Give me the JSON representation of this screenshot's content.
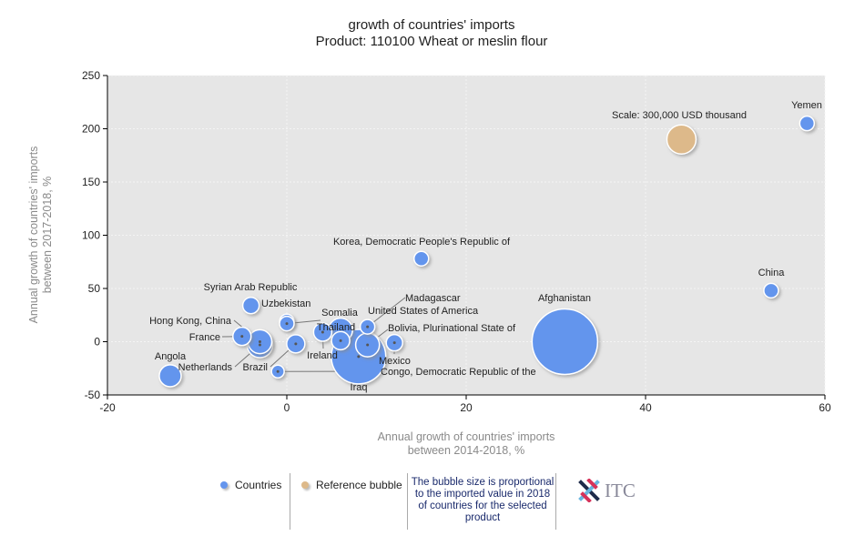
{
  "chart_data": {
    "type": "bubble",
    "title": "growth of countries' imports",
    "subtitle": "Product: 110100 Wheat or meslin flour",
    "xlabel": [
      "Annual growth of countries' imports",
      "between 2014-2018, %"
    ],
    "ylabel": [
      "Annual growth of countries' imports",
      "between 2017-2018, %"
    ],
    "xlim": [
      -20,
      60
    ],
    "ylim": [
      -50,
      250
    ],
    "xticks": [
      "-20",
      "0",
      "20",
      "40",
      "60"
    ],
    "yticks": [
      "-50",
      "0",
      "50",
      "100",
      "150",
      "200",
      "250"
    ],
    "grid": true,
    "colors": {
      "countries": "#6495ed",
      "reference": "#ddb98a"
    },
    "reference": {
      "label": "Scale: 300,000 USD thousand",
      "x": 44,
      "y": 190,
      "size": 300000
    },
    "points": [
      {
        "name": "Yemen",
        "x": 58,
        "y": 205,
        "size": 75000
      },
      {
        "name": "Korea, Democratic People's Republic of",
        "x": 15,
        "y": 78,
        "size": 75000
      },
      {
        "name": "China",
        "x": 54,
        "y": 48,
        "size": 75000
      },
      {
        "name": "Afghanistan",
        "x": 31,
        "y": 0,
        "size": 1520000
      },
      {
        "name": "Syrian Arab Republic",
        "x": 0,
        "y": 19,
        "size": 75000
      },
      {
        "name": "Uzbekistan",
        "x": -4,
        "y": 34,
        "size": 95000
      },
      {
        "name": "Thailand",
        "x": 0,
        "y": 17,
        "size": 75000
      },
      {
        "name": "Hong Kong, China",
        "x": -3,
        "y": 0,
        "size": 200000
      },
      {
        "name": "Netherlands",
        "x": -3,
        "y": -3,
        "size": 230000
      },
      {
        "name": "France",
        "x": -5,
        "y": 5,
        "size": 117000
      },
      {
        "name": "Brazil",
        "x": 1,
        "y": -2,
        "size": 117000
      },
      {
        "name": "Congo, Democratic Republic of the",
        "x": -1,
        "y": -28,
        "size": 57000
      },
      {
        "name": "Ireland",
        "x": 4,
        "y": 9,
        "size": 117000
      },
      {
        "name": "Somalia",
        "x": 6,
        "y": 1,
        "size": 117000
      },
      {
        "name": "United States of America",
        "x": 6,
        "y": 11,
        "size": 200000
      },
      {
        "name": "Madagascar",
        "x": 9,
        "y": 14,
        "size": 75000
      },
      {
        "name": "Bolivia, Plurinational State of",
        "x": 9,
        "y": -3,
        "size": 200000
      },
      {
        "name": "Mexico",
        "x": 12,
        "y": -1,
        "size": 95000
      },
      {
        "name": "Iraq",
        "x": 8,
        "y": -14,
        "size": 1050000
      },
      {
        "name": "Angola",
        "x": -13,
        "y": -32,
        "size": 170000
      }
    ]
  },
  "legend": {
    "countries": "Countries",
    "reference": "Reference bubble",
    "note": "The bubble size is proportional to the imported value in 2018 of countries for the selected product",
    "logo_text": "ITC"
  }
}
